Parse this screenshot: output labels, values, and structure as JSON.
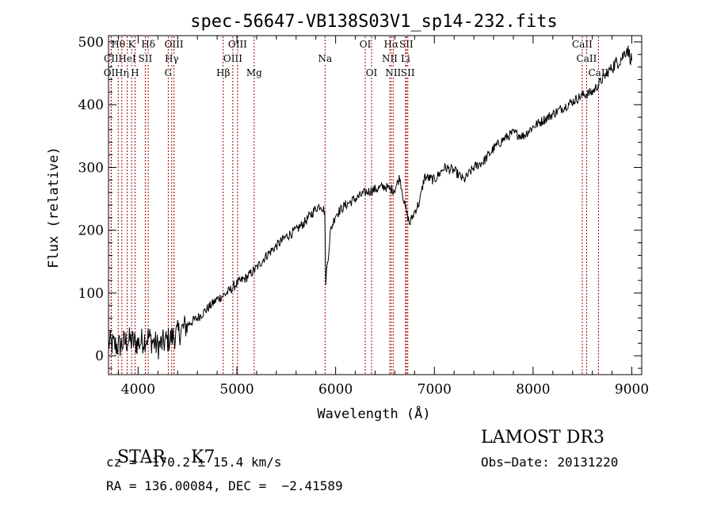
{
  "chart_data": {
    "type": "line",
    "title": "spec-56647-VB138S03V1_sp14-232.fits",
    "xlabel": "Wavelength (Å)",
    "ylabel": "Flux (relative)",
    "xlim": [
      3700,
      9100
    ],
    "ylim": [
      -30,
      510
    ],
    "xticks": [
      4000,
      5000,
      6000,
      7000,
      8000,
      9000
    ],
    "yticks": [
      0,
      100,
      200,
      300,
      400,
      500
    ],
    "grid": false,
    "series": [
      {
        "name": "flux",
        "x": [
          3700,
          3800,
          3900,
          4000,
          4100,
          4200,
          4300,
          4400,
          4500,
          4600,
          4700,
          4800,
          4900,
          5000,
          5100,
          5200,
          5300,
          5400,
          5500,
          5600,
          5700,
          5800,
          5850,
          5890,
          5900,
          5950,
          6000,
          6100,
          6200,
          6300,
          6400,
          6500,
          6550,
          6600,
          6650,
          6700,
          6750,
          6800,
          6850,
          6900,
          7000,
          7100,
          7200,
          7300,
          7400,
          7500,
          7600,
          7700,
          7800,
          7900,
          8000,
          8100,
          8200,
          8300,
          8400,
          8500,
          8600,
          8700,
          8800,
          8900,
          8950,
          9000
        ],
        "y": [
          20,
          15,
          25,
          20,
          30,
          15,
          25,
          35,
          50,
          60,
          75,
          90,
          100,
          115,
          125,
          140,
          160,
          175,
          190,
          200,
          215,
          235,
          240,
          230,
          120,
          200,
          225,
          240,
          250,
          260,
          265,
          270,
          265,
          265,
          285,
          240,
          210,
          230,
          245,
          285,
          280,
          300,
          295,
          280,
          300,
          310,
          330,
          345,
          355,
          350,
          365,
          375,
          385,
          395,
          405,
          415,
          420,
          440,
          460,
          475,
          490,
          470
        ]
      }
    ],
    "lines": [
      {
        "label": "Hθ",
        "x": 3798,
        "row": 0
      },
      {
        "label": "K",
        "x": 3934,
        "row": 0
      },
      {
        "label": "Hδ",
        "x": 4102,
        "row": 0
      },
      {
        "label": "OIII",
        "x": 4363,
        "row": 0
      },
      {
        "label": "OIII",
        "x": 5007,
        "row": 0
      },
      {
        "label": "OI",
        "x": 6300,
        "row": 0
      },
      {
        "label": "Hα",
        "x": 6563,
        "row": 0
      },
      {
        "label": "SII",
        "x": 6716,
        "row": 0
      },
      {
        "label": "CaII",
        "x": 8498,
        "row": 0
      },
      {
        "label": "CII",
        "x": 3727,
        "row": 1
      },
      {
        "label": "HeI",
        "x": 3889,
        "row": 1
      },
      {
        "label": "SII",
        "x": 4072,
        "row": 1
      },
      {
        "label": "Hγ",
        "x": 4340,
        "row": 1
      },
      {
        "label": "OIII",
        "x": 4959,
        "row": 1
      },
      {
        "label": "Na",
        "x": 5893,
        "row": 1
      },
      {
        "label": "NII",
        "x": 6548,
        "row": 1
      },
      {
        "label": "Li",
        "x": 6708,
        "row": 1
      },
      {
        "label": "CaII",
        "x": 8542,
        "row": 1
      },
      {
        "label": "OII",
        "x": 3727,
        "row": 2
      },
      {
        "label": "Hη",
        "x": 3835,
        "row": 2
      },
      {
        "label": "H",
        "x": 3968,
        "row": 2
      },
      {
        "label": "G",
        "x": 4305,
        "row": 2
      },
      {
        "label": "Hβ",
        "x": 4861,
        "row": 2
      },
      {
        "label": "Mg",
        "x": 5175,
        "row": 2
      },
      {
        "label": "OI",
        "x": 6364,
        "row": 2
      },
      {
        "label": "NII",
        "x": 6583,
        "row": 2
      },
      {
        "label": "SII",
        "x": 6731,
        "row": 2
      },
      {
        "label": "CaII",
        "x": 8662,
        "row": 2
      }
    ]
  },
  "info": {
    "class_label": "STAR",
    "subclass": "K7",
    "survey": "LAMOST DR3",
    "cz": "cz = −170.2 ± 15.4 km/s",
    "obs_date": "Obs−Date: 20131220",
    "coords": "RA = 136.00084, DEC =  −2.41589"
  },
  "colors": {
    "line_marker": "#a00000",
    "spectrum": "#000000"
  }
}
